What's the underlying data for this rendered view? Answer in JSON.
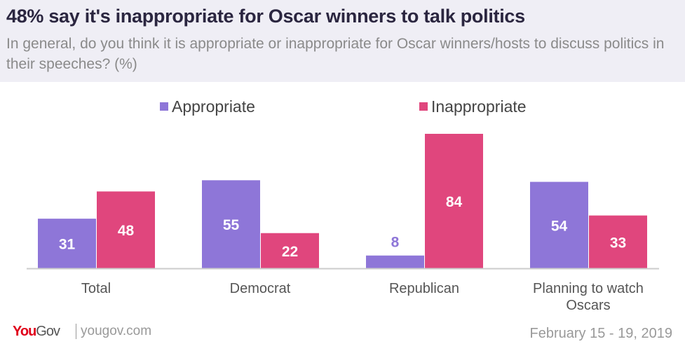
{
  "header": {
    "title": "48% say it's inappropriate for Oscar winners to talk politics",
    "subtitle": "In general, do you think it is appropriate or inappropriate for Oscar winners/hosts to discuss politics in their speeches? (%)"
  },
  "footer": {
    "logo": "YouGov",
    "site": "yougov.com",
    "date": "February 15 - 19, 2019"
  },
  "chart_data": {
    "type": "bar",
    "categories": [
      "Total",
      "Democrat",
      "Republican",
      "Planning to watch Oscars"
    ],
    "series": [
      {
        "name": "Appropriate",
        "color": "#8e76d8",
        "values": [
          31,
          55,
          8,
          54
        ]
      },
      {
        "name": "Inappropriate",
        "color": "#e0467d",
        "values": [
          48,
          22,
          84,
          33
        ]
      }
    ],
    "ylim": [
      0,
      84
    ],
    "legend": "top",
    "grid": false
  }
}
